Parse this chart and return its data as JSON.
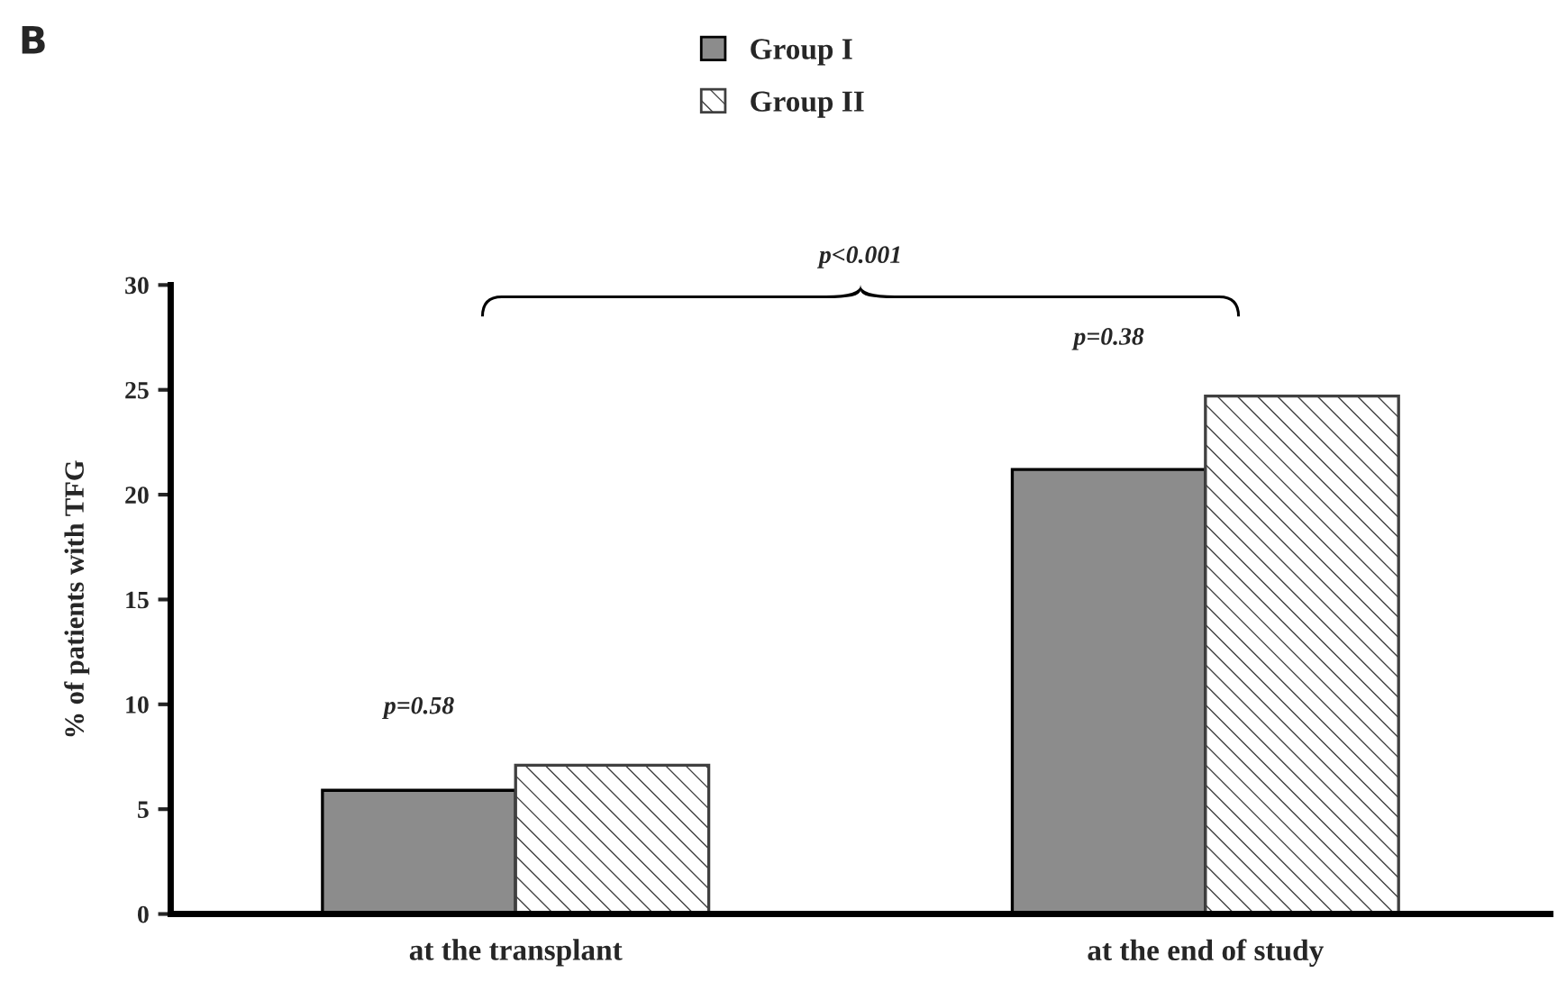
{
  "chart_data": {
    "type": "bar",
    "ylabel": "% of patients with TFG",
    "categories": [
      "at the transplant",
      "at the end of study"
    ],
    "series": [
      {
        "name": "Group I",
        "color": "#8c8c8c",
        "values": [
          5.9,
          21.2
        ]
      },
      {
        "name": "Group II",
        "color": "#404040",
        "values": [
          7.1,
          24.7
        ]
      }
    ],
    "ylim": [
      0,
      30
    ],
    "yticks": [
      0,
      5,
      10,
      15,
      20,
      25,
      30
    ],
    "grid": false,
    "legend": "top",
    "annotations": [
      "B",
      "p<0.001",
      "p=0.58",
      "p=0.38"
    ]
  }
}
